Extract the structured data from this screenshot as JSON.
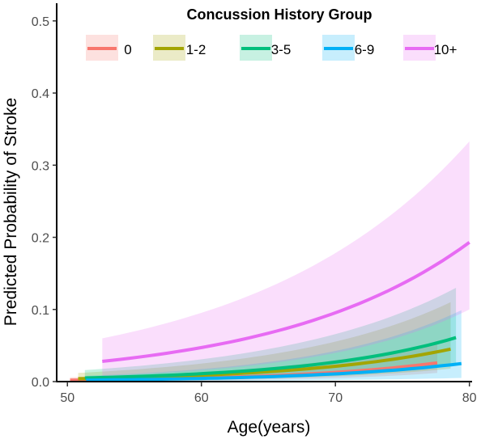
{
  "chart_data": {
    "type": "line",
    "xlabel": "Age(years)",
    "ylabel": "Predicted Probability of Stroke",
    "xlim": [
      49.2,
      80.2
    ],
    "ylim": [
      0,
      0.52
    ],
    "x_ticks": [
      "50",
      "60",
      "70",
      "80"
    ],
    "y_ticks": [
      "0.0",
      "0.1",
      "0.2",
      "0.3",
      "0.4",
      "0.5"
    ],
    "x_tick_values": [
      50,
      60,
      70,
      80
    ],
    "y_tick_values": [
      0,
      0.1,
      0.2,
      0.3,
      0.4,
      0.5
    ],
    "grid": false,
    "legend": {
      "title": "Concussion History Group",
      "position": "top"
    },
    "series": [
      {
        "name": "0",
        "color": "#f8766d",
        "x_range": [
          50.2,
          77.6
        ],
        "y_start": 0.002,
        "y_end": 0.026,
        "band_lower": [
          0.0005,
          0.012
        ],
        "band_upper": [
          0.006,
          0.055
        ]
      },
      {
        "name": "1-2",
        "color": "#a3a500",
        "x_range": [
          50.8,
          78.6
        ],
        "y_start": 0.004,
        "y_end": 0.045,
        "band_lower": [
          0.001,
          0.018
        ],
        "band_upper": [
          0.012,
          0.11
        ]
      },
      {
        "name": "3-5",
        "color": "#00bf7d",
        "x_range": [
          51.3,
          79.0
        ],
        "y_start": 0.005,
        "y_end": 0.061,
        "band_lower": [
          0.001,
          0.025
        ],
        "band_upper": [
          0.016,
          0.13
        ]
      },
      {
        "name": "6-9",
        "color": "#00b0f6",
        "x_range": [
          51.4,
          79.4
        ],
        "y_start": 0.002,
        "y_end": 0.025,
        "band_lower": [
          0.0004,
          0.005
        ],
        "band_upper": [
          0.008,
          0.099
        ]
      },
      {
        "name": "10+",
        "color": "#e76bf3",
        "x_range": [
          52.6,
          80.0
        ],
        "y_start": 0.028,
        "y_end": 0.193,
        "band_lower": [
          0.008,
          0.1
        ],
        "band_upper": [
          0.06,
          0.333
        ]
      }
    ]
  }
}
